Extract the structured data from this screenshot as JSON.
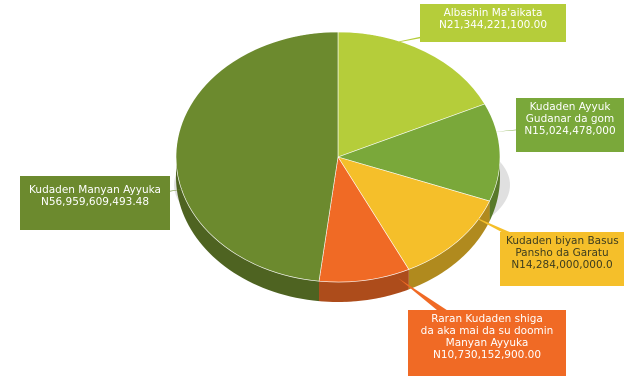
{
  "chart_data": {
    "type": "pie",
    "title": "",
    "slices": [
      {
        "lines": [
          "Albashin Ma'aikata",
          "N21,344,221,100.00"
        ],
        "value": 21344221100.0,
        "color": "#b5cd3a"
      },
      {
        "lines": [
          "Kudaden Ayyuk",
          "Gudanar da gom",
          "N15,024,478,000"
        ],
        "value": 15024478000.0,
        "color": "#7aa83a"
      },
      {
        "lines": [
          "Kudaden biyan Basus",
          "Pansho da Garatu",
          "N14,284,000,000.0"
        ],
        "value": 14284000000.0,
        "color": "#f5bf2a"
      },
      {
        "lines": [
          "Raran Kudaden shiga",
          "da aka mai da su doomin",
          "Manyan Ayyuka",
          "N10,730,152,900.00"
        ],
        "value": 10730152900.0,
        "color": "#f06a25"
      },
      {
        "lines": [
          "Kudaden Manyan Ayyuka",
          "N56,959,609,493.48"
        ],
        "value": 56959609493.48,
        "color": "#6c8a2e"
      }
    ]
  }
}
